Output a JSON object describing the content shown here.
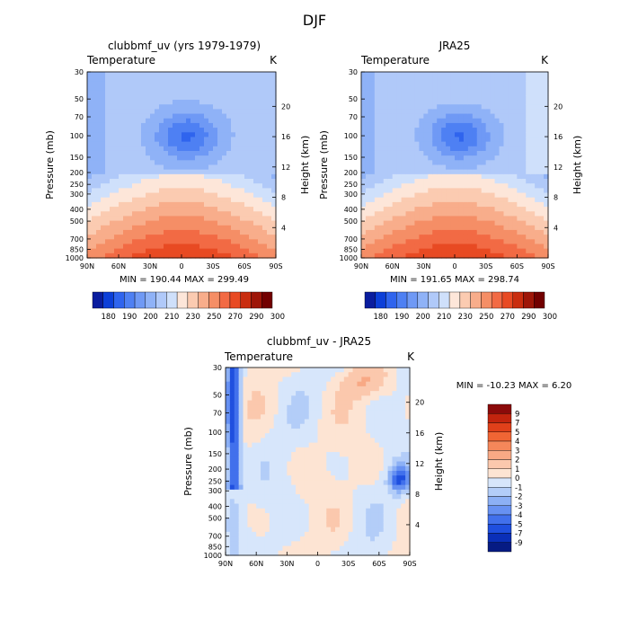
{
  "figure": {
    "title": "DJF"
  },
  "chart_data": [
    {
      "type": "heatmap",
      "title": "clubbmf_uv (yrs 1979-1979)",
      "left_label": "Temperature",
      "right_label": "K",
      "xlabel": "",
      "ylabel": "Pressure (mb)",
      "ylabel_right": "Height (km)",
      "x_ticks": [
        "90N",
        "60N",
        "30N",
        "0",
        "30S",
        "60S",
        "90S"
      ],
      "y_ticks": [
        30,
        50,
        70,
        100,
        150,
        200,
        250,
        300,
        400,
        500,
        700,
        850,
        1000
      ],
      "y_ticks_right": [
        4,
        8,
        12,
        16,
        20
      ],
      "ylim": [
        30,
        1000
      ],
      "stats": "MIN = 190.44   MAX = 299.49",
      "colorbar_labels": [
        "180",
        "190",
        "200",
        "210",
        "230",
        "250",
        "270",
        "290",
        "300"
      ],
      "colorbar_colors": [
        "#0a1d9e",
        "#0c3fd8",
        "#2f64ee",
        "#4e80f3",
        "#6f99f5",
        "#8fb2f7",
        "#b0c9f9",
        "#cfe0fb",
        "#fde6d9",
        "#fbcbb1",
        "#f8ad8b",
        "#f58e66",
        "#f26a44",
        "#e84a23",
        "#c92d0f",
        "#9e1608",
        "#720000"
      ],
      "levels": [
        {
          "rule": "p<=45 && (x<4 || x>180)",
          "temp": 206
        },
        {
          "rule": "pressure 30-200 mb",
          "temp": 212
        },
        {
          "rule": "core near 100 mb, 20N-30S",
          "temp": 193
        },
        {
          "rule": "250-400 mb",
          "temp": 235
        },
        {
          "rule": "400-700 mb",
          "temp": 258
        },
        {
          "rule": "700-1000 mb tropics",
          "temp": 290
        }
      ]
    },
    {
      "type": "heatmap",
      "title": "JRA25",
      "left_label": "Temperature",
      "right_label": "K",
      "xlabel": "",
      "ylabel": "Pressure (mb)",
      "ylabel_right": "Height (km)",
      "x_ticks": [
        "90N",
        "60N",
        "30N",
        "0",
        "30S",
        "60S",
        "90S"
      ],
      "y_ticks": [
        30,
        50,
        70,
        100,
        150,
        200,
        250,
        300,
        400,
        500,
        700,
        850,
        1000
      ],
      "y_ticks_right": [
        4,
        8,
        12,
        16,
        20
      ],
      "ylim": [
        30,
        1000
      ],
      "stats": "MIN = 191.65   MAX = 298.74",
      "colorbar_labels": [
        "180",
        "190",
        "200",
        "210",
        "230",
        "250",
        "270",
        "290",
        "300"
      ],
      "colorbar_colors": [
        "#0a1d9e",
        "#0c3fd8",
        "#2f64ee",
        "#4e80f3",
        "#6f99f5",
        "#8fb2f7",
        "#b0c9f9",
        "#cfe0fb",
        "#fde6d9",
        "#fbcbb1",
        "#f8ad8b",
        "#f58e66",
        "#f26a44",
        "#e84a23",
        "#c92d0f",
        "#9e1608",
        "#720000"
      ]
    },
    {
      "type": "heatmap",
      "title": "clubbmf_uv - JRA25",
      "left_label": "Temperature",
      "right_label": "K",
      "xlabel": "",
      "ylabel": "Pressure (mb)",
      "ylabel_right": "Height (km)",
      "x_ticks": [
        "90N",
        "60N",
        "30N",
        "0",
        "30S",
        "60S",
        "90S"
      ],
      "y_ticks": [
        30,
        50,
        70,
        100,
        150,
        200,
        250,
        300,
        400,
        500,
        700,
        850,
        1000
      ],
      "y_ticks_right": [
        4,
        8,
        12,
        16,
        20
      ],
      "ylim": [
        30,
        1000
      ],
      "stats": "MIN = -10.23   MAX =   6.20",
      "colorbar_labels": [
        "9",
        "7",
        "5",
        "4",
        "3",
        "2",
        "1",
        "0",
        "-1",
        "-2",
        "-3",
        "-4",
        "-5",
        "-7",
        "-9"
      ],
      "colorbar_colors": [
        "#8b0a0a",
        "#c2240e",
        "#e0401a",
        "#f06534",
        "#f5875a",
        "#f8a985",
        "#fbc8ad",
        "#fde4d3",
        "#d7e6fb",
        "#b3cdf8",
        "#8cb0f5",
        "#6791f2",
        "#4170ec",
        "#1f4fdf",
        "#0a2fb8",
        "#061b83"
      ]
    }
  ]
}
